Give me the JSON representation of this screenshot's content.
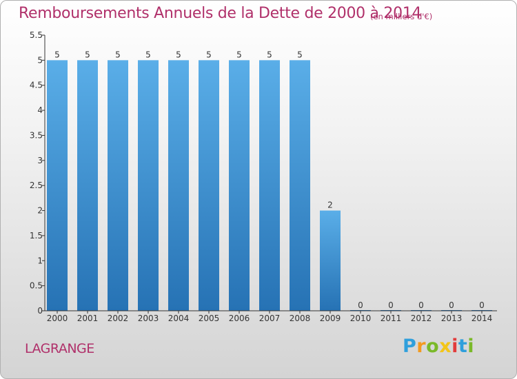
{
  "title": "Remboursements Annuels de la Dette de 2000 à 2014",
  "subtitle": "(en milliers d'€)",
  "commune": "LAGRANGE",
  "brand": {
    "letters": [
      "P",
      "r",
      "o",
      "x",
      "i",
      "t",
      "i"
    ],
    "colors": [
      "#2f9fdc",
      "#f39a1f",
      "#7ab929",
      "#f3c518",
      "#e23c3c",
      "#2f9fdc",
      "#7ab929"
    ]
  },
  "colors": {
    "bar_top": "#5aaee8",
    "bar_bottom": "#2672b4",
    "axis": "#333333",
    "text": "#333333",
    "title": "#b0306a"
  },
  "chart_data": {
    "type": "bar",
    "categories": [
      "2000",
      "2001",
      "2002",
      "2003",
      "2004",
      "2005",
      "2006",
      "2007",
      "2008",
      "2009",
      "2010",
      "2011",
      "2012",
      "2013",
      "2014"
    ],
    "values": [
      5,
      5,
      5,
      5,
      5,
      5,
      5,
      5,
      5,
      2,
      0,
      0,
      0,
      0,
      0
    ],
    "data_labels": [
      "5",
      "5",
      "5",
      "5",
      "5",
      "5",
      "5",
      "5",
      "5",
      "2",
      "0",
      "0",
      "0",
      "0",
      "0"
    ],
    "title": "Remboursements Annuels de la Dette de 2000 à 2014",
    "xlabel": "",
    "ylabel": "",
    "ylim": [
      0,
      5.5
    ],
    "yticks": [
      "0",
      "0.5",
      "1",
      "1.5",
      "2",
      "2.5",
      "3",
      "3.5",
      "4",
      "4.5",
      "5",
      "5.5"
    ],
    "grid": false,
    "legend": "none"
  }
}
